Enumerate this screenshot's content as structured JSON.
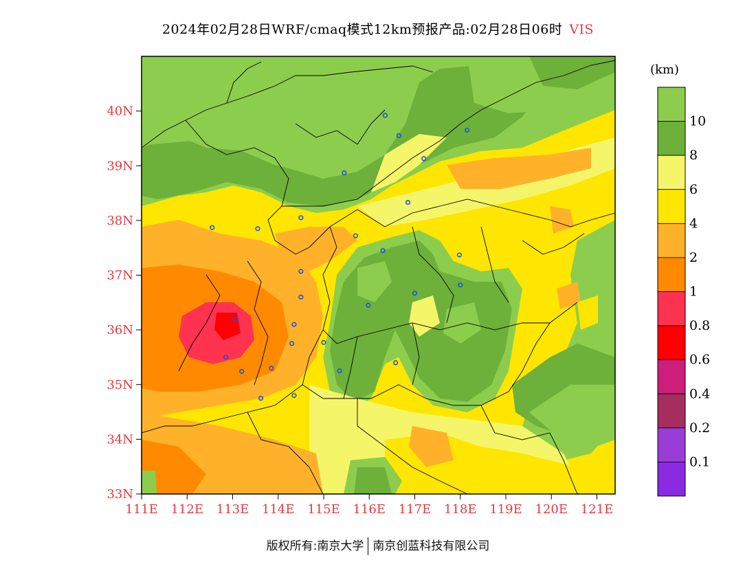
{
  "title": {
    "main": "2024年02月28日WRF/cmaq模式12km预报产品:02月28日06时",
    "variable": "VIS"
  },
  "colors": {
    "axis_label": "#e8383d",
    "variable_label": "#e8383d"
  },
  "map": {
    "lon_range": [
      111,
      121.4
    ],
    "lat_range": [
      33,
      41
    ],
    "lat_ticks": [
      "40N",
      "39N",
      "38N",
      "37N",
      "36N",
      "35N",
      "34N",
      "33N"
    ],
    "lon_ticks": [
      "111E",
      "112E",
      "113E",
      "114E",
      "115E",
      "116E",
      "117E",
      "118E",
      "119E",
      "120E",
      "121E"
    ]
  },
  "legend": {
    "unit": "(km)",
    "bins": [
      {
        "color": "#8dcd4e",
        "label": "10"
      },
      {
        "color": "#6db03a",
        "label": "8"
      },
      {
        "color": "#f5f56a",
        "label": "6"
      },
      {
        "color": "#ffe600",
        "label": "4"
      },
      {
        "color": "#ffb229",
        "label": "2"
      },
      {
        "color": "#ff8a00",
        "label": "1"
      },
      {
        "color": "#ff3350",
        "label": "0.8"
      },
      {
        "color": "#ff0000",
        "label": "0.6"
      },
      {
        "color": "#cc1e7a",
        "label": "0.4"
      },
      {
        "color": "#a62e5e",
        "label": "0.2"
      },
      {
        "color": "#9a3dd6",
        "label": "0.1"
      },
      {
        "color": "#8a2be2",
        "label": ""
      }
    ]
  },
  "stations": [
    [
      116.35,
      39.92
    ],
    [
      116.65,
      39.55
    ],
    [
      118.15,
      39.65
    ],
    [
      117.2,
      39.13
    ],
    [
      115.45,
      38.87
    ],
    [
      116.85,
      38.33
    ],
    [
      114.5,
      38.05
    ],
    [
      113.55,
      37.85
    ],
    [
      112.55,
      37.87
    ],
    [
      115.7,
      37.72
    ],
    [
      116.3,
      37.45
    ],
    [
      114.5,
      37.07
    ],
    [
      114.5,
      36.6
    ],
    [
      113.05,
      36.2
    ],
    [
      114.35,
      36.1
    ],
    [
      117.0,
      36.67
    ],
    [
      118.0,
      36.82
    ],
    [
      117.98,
      37.37
    ],
    [
      115.98,
      36.45
    ],
    [
      114.3,
      35.75
    ],
    [
      115.0,
      35.77
    ],
    [
      115.35,
      35.25
    ],
    [
      116.58,
      35.4
    ],
    [
      113.85,
      35.3
    ],
    [
      113.2,
      35.24
    ],
    [
      112.85,
      35.5
    ],
    [
      114.35,
      34.8
    ],
    [
      113.62,
      34.75
    ]
  ],
  "footer": {
    "left": "版权所有:南京大学",
    "right": "南京创蓝科技有限公司"
  }
}
